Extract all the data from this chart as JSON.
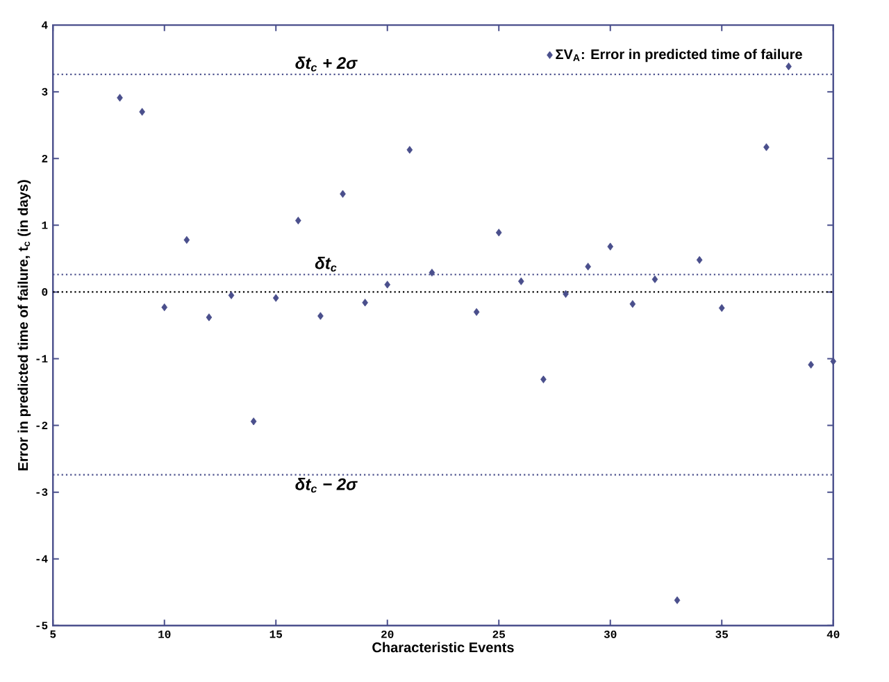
{
  "chart_data": {
    "type": "scatter",
    "xlabel": "Characteristic Events",
    "ylabel": "Error in predicted time of failure, t$_{c}$ (in days)",
    "x": [
      8,
      9,
      10,
      11,
      12,
      13,
      14,
      15,
      16,
      17,
      18,
      19,
      20,
      21,
      22,
      24,
      25,
      26,
      27,
      28,
      29,
      30,
      31,
      32,
      33,
      34,
      35,
      37,
      38,
      39,
      40
    ],
    "series": [
      {
        "name": "ΣV$_{A}$: Error in predicted time of failure",
        "color": "#4a4f8c",
        "values": [
          2.91,
          2.7,
          -0.23,
          0.78,
          -0.38,
          -0.05,
          -1.94,
          -0.09,
          1.07,
          -0.36,
          1.47,
          -0.16,
          0.11,
          2.13,
          0.29,
          -0.3,
          0.89,
          0.16,
          -1.31,
          -0.03,
          0.38,
          0.68,
          -0.18,
          0.19,
          -4.62,
          0.48,
          -0.24,
          2.17,
          3.38,
          -1.09,
          -1.04
        ]
      }
    ],
    "xlim": [
      5,
      40
    ],
    "xticks": [
      5,
      10,
      15,
      20,
      25,
      30,
      35,
      40
    ],
    "ylim": [
      -5,
      4
    ],
    "yticks": [
      -5,
      -4,
      -3,
      -2,
      -1,
      0,
      1,
      2,
      3,
      4
    ],
    "ref_lines": [
      {
        "axis": "y",
        "value": 3.26,
        "label": "δt$_{c}$ + 2σ",
        "color": "#4a4f8c",
        "line_style": "dotted"
      },
      {
        "axis": "y",
        "value": 0.26,
        "label": "δt$_{c}$",
        "color": "#4a4f8c",
        "line_style": "dotted"
      },
      {
        "axis": "y",
        "value": 0,
        "color": "#000000",
        "line_style": "dotted"
      },
      {
        "axis": "y",
        "value": -2.74,
        "label": "δt$_{c}$ − 2σ",
        "color": "#4a4f8c",
        "line_style": "dotted"
      }
    ],
    "grid": false,
    "legend": "top right",
    "marker": "diamond"
  }
}
